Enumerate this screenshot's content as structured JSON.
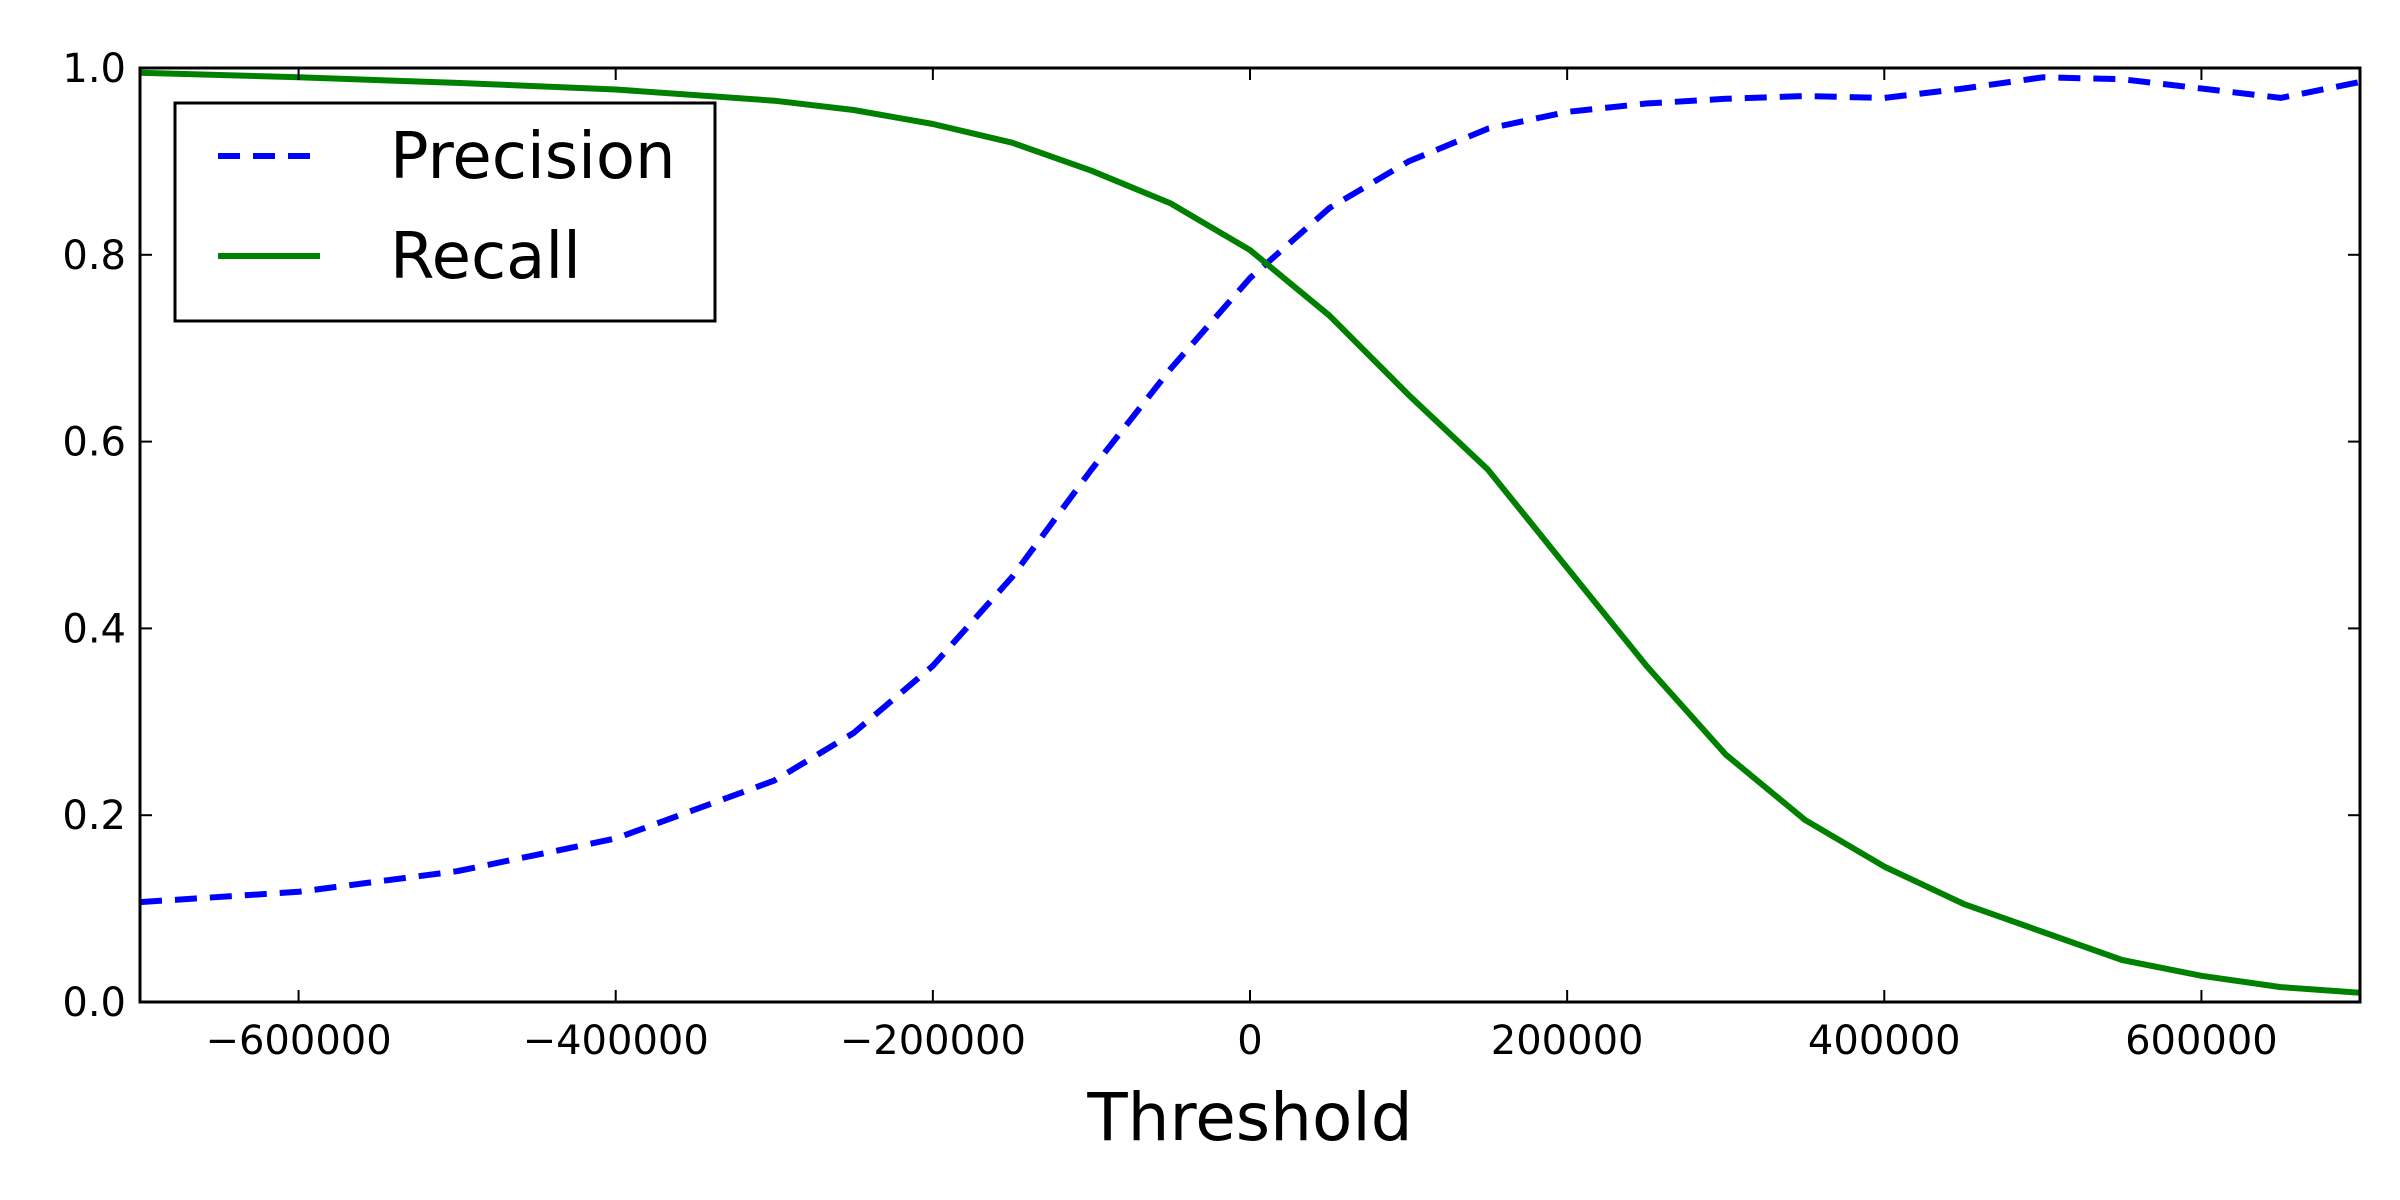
{
  "chart_data": {
    "type": "line",
    "xlabel": "Threshold",
    "ylabel": "",
    "xlim": [
      -700000,
      700000
    ],
    "ylim": [
      0.0,
      1.0
    ],
    "grid": false,
    "legend_position": "top-left",
    "x_ticks": [
      {
        "value": -600000,
        "label": "−600000"
      },
      {
        "value": -400000,
        "label": "−400000"
      },
      {
        "value": -200000,
        "label": "−200000"
      },
      {
        "value": 0,
        "label": "0"
      },
      {
        "value": 200000,
        "label": "200000"
      },
      {
        "value": 400000,
        "label": "400000"
      },
      {
        "value": 600000,
        "label": "600000"
      }
    ],
    "y_ticks": [
      {
        "value": 0.0,
        "label": "0.0"
      },
      {
        "value": 0.2,
        "label": "0.2"
      },
      {
        "value": 0.4,
        "label": "0.4"
      },
      {
        "value": 0.6,
        "label": "0.6"
      },
      {
        "value": 0.8,
        "label": "0.8"
      },
      {
        "value": 1.0,
        "label": "1.0"
      }
    ],
    "series": [
      {
        "name": "Precision",
        "color": "#0000ff",
        "style": "dashed",
        "x": [
          -700000,
          -600000,
          -500000,
          -400000,
          -300000,
          -250000,
          -200000,
          -150000,
          -100000,
          -50000,
          0,
          50000,
          100000,
          150000,
          200000,
          250000,
          300000,
          350000,
          400000,
          450000,
          500000,
          550000,
          600000,
          650000,
          700000
        ],
        "y": [
          0.107,
          0.118,
          0.14,
          0.175,
          0.237,
          0.288,
          0.36,
          0.455,
          0.57,
          0.678,
          0.775,
          0.85,
          0.9,
          0.935,
          0.953,
          0.962,
          0.967,
          0.97,
          0.968,
          0.978,
          0.99,
          0.988,
          0.978,
          0.968,
          0.985
        ]
      },
      {
        "name": "Recall",
        "color": "#008000",
        "style": "solid",
        "x": [
          -700000,
          -600000,
          -500000,
          -400000,
          -300000,
          -250000,
          -200000,
          -150000,
          -100000,
          -50000,
          0,
          50000,
          100000,
          150000,
          200000,
          250000,
          300000,
          350000,
          400000,
          450000,
          500000,
          550000,
          600000,
          650000,
          700000
        ],
        "y": [
          0.995,
          0.99,
          0.984,
          0.977,
          0.965,
          0.955,
          0.94,
          0.92,
          0.89,
          0.855,
          0.805,
          0.735,
          0.65,
          0.57,
          0.465,
          0.36,
          0.265,
          0.195,
          0.145,
          0.105,
          0.075,
          0.045,
          0.028,
          0.016,
          0.01
        ]
      }
    ]
  }
}
